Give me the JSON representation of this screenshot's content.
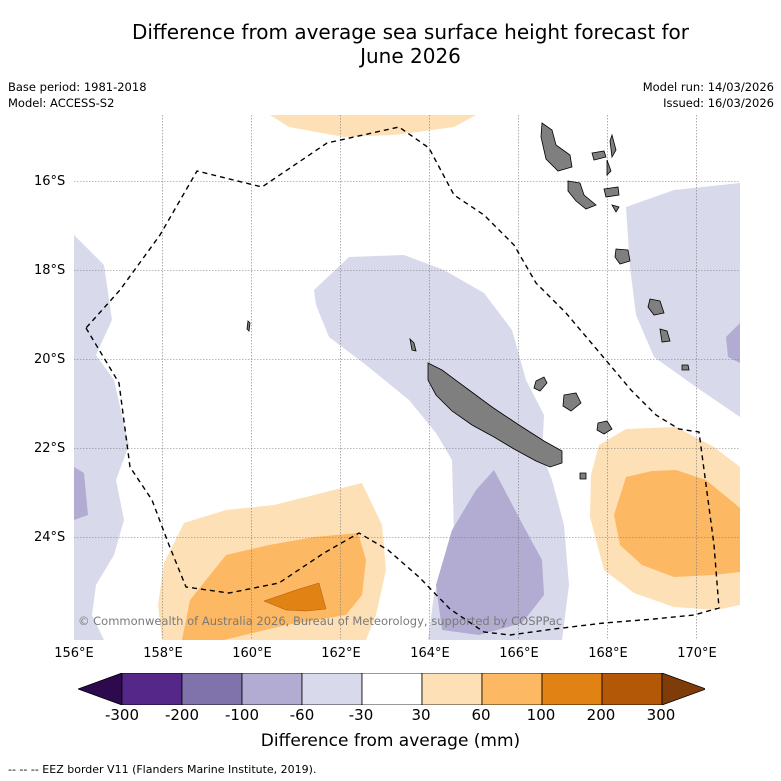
{
  "title_line1": "Difference from average sea surface height forecast for",
  "title_line2": "June 2026",
  "base_period": "Base period: 1981-2018",
  "model": "Model: ACCESS-S2",
  "model_run": "Model run: 14/03/2026",
  "issued": "Issued: 16/03/2026",
  "map": {
    "lon_range": [
      156.0,
      171.0
    ],
    "lat_range": [
      -26.3,
      -14.5
    ],
    "lat_labels": [
      "16°S",
      "18°S",
      "20°S",
      "22°S",
      "24°S"
    ],
    "lon_labels": [
      "156°E",
      "158°E",
      "160°E",
      "162°E",
      "164°E",
      "166°E",
      "168°E",
      "170°E"
    ],
    "copyright": "© Commonwealth of Australia 2026, Bureau of Meteorology, supported by COSPPac",
    "eez_border_style": "dashed black line"
  },
  "colorbar": {
    "labels": [
      "-300",
      "-200",
      "-100",
      "-60",
      "-30",
      "30",
      "60",
      "100",
      "200",
      "300"
    ],
    "colors": [
      "#2d0a4e",
      "#542788",
      "#8073ac",
      "#b2abd2",
      "#d8daeb",
      "#ffffff",
      "#fee0b6",
      "#fdb863",
      "#e08214",
      "#b35806",
      "#7f3b08"
    ],
    "title": "Difference from average (mm)"
  },
  "footer": "--  --  -- EEZ border V11 (Flanders Marine Institute, 2019)."
}
